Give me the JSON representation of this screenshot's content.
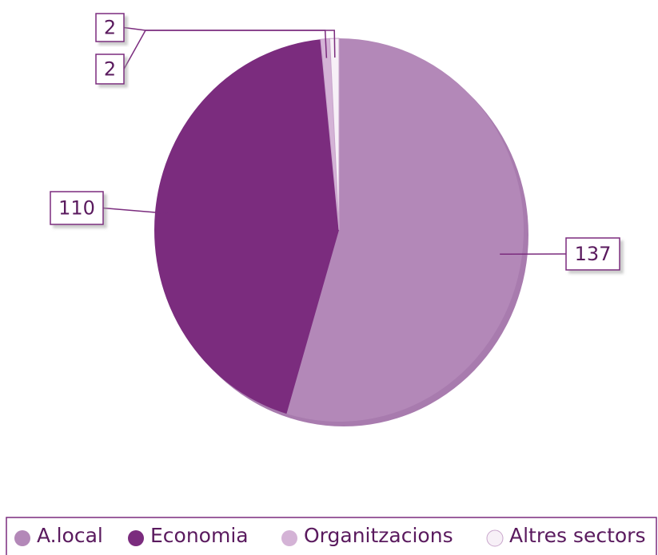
{
  "chart_data": {
    "type": "pie",
    "categories": [
      "A.local",
      "Economia",
      "Organitzacions",
      "Altres sectors"
    ],
    "series": [
      {
        "values": [
          137,
          110,
          2,
          2
        ]
      }
    ],
    "colors": [
      "#b388b8",
      "#7b2c7e",
      "#d4b3d6",
      "#f7f0f7"
    ],
    "legend": "bottom"
  }
}
